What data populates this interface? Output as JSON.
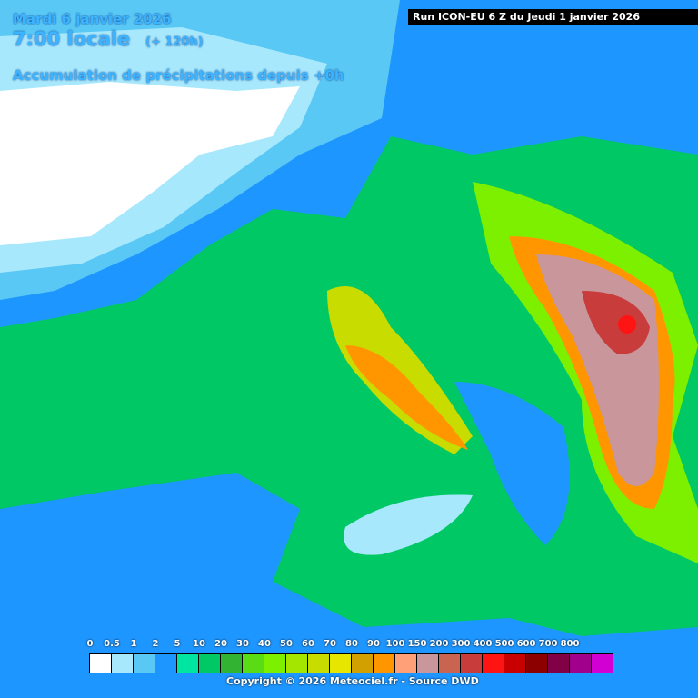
{
  "header": {
    "date": "Mardi 6 janvier 2026",
    "hour": "7:00 locale",
    "lead": "(+ 120h)",
    "description": "Accumulation de précipitations depuis +0h",
    "run": "Run ICON-EU 6 Z du Jeudi 1 janvier 2026"
  },
  "legend": {
    "labels": [
      "0",
      "0.5",
      "1",
      "2",
      "5",
      "10",
      "20",
      "30",
      "40",
      "50",
      "60",
      "70",
      "80",
      "90",
      "100",
      "150",
      "200",
      "300",
      "400",
      "500",
      "600",
      "700",
      "800"
    ],
    "colors": [
      "#ffffff",
      "#a8e8fc",
      "#5ac8f5",
      "#1e96ff",
      "#00e6a0",
      "#00c864",
      "#32b432",
      "#5adc14",
      "#7df000",
      "#a5e600",
      "#c8dc00",
      "#e6e600",
      "#d2a000",
      "#ff9600",
      "#ffa078",
      "#c8969b",
      "#c86450",
      "#c83c3c",
      "#ff1414",
      "#c80000",
      "#8c0000",
      "#820046",
      "#a0008c",
      "#d200d2"
    ]
  },
  "footer": {
    "copyright": "Copyright © 2026 Meteociel.fr - Source DWD"
  }
}
